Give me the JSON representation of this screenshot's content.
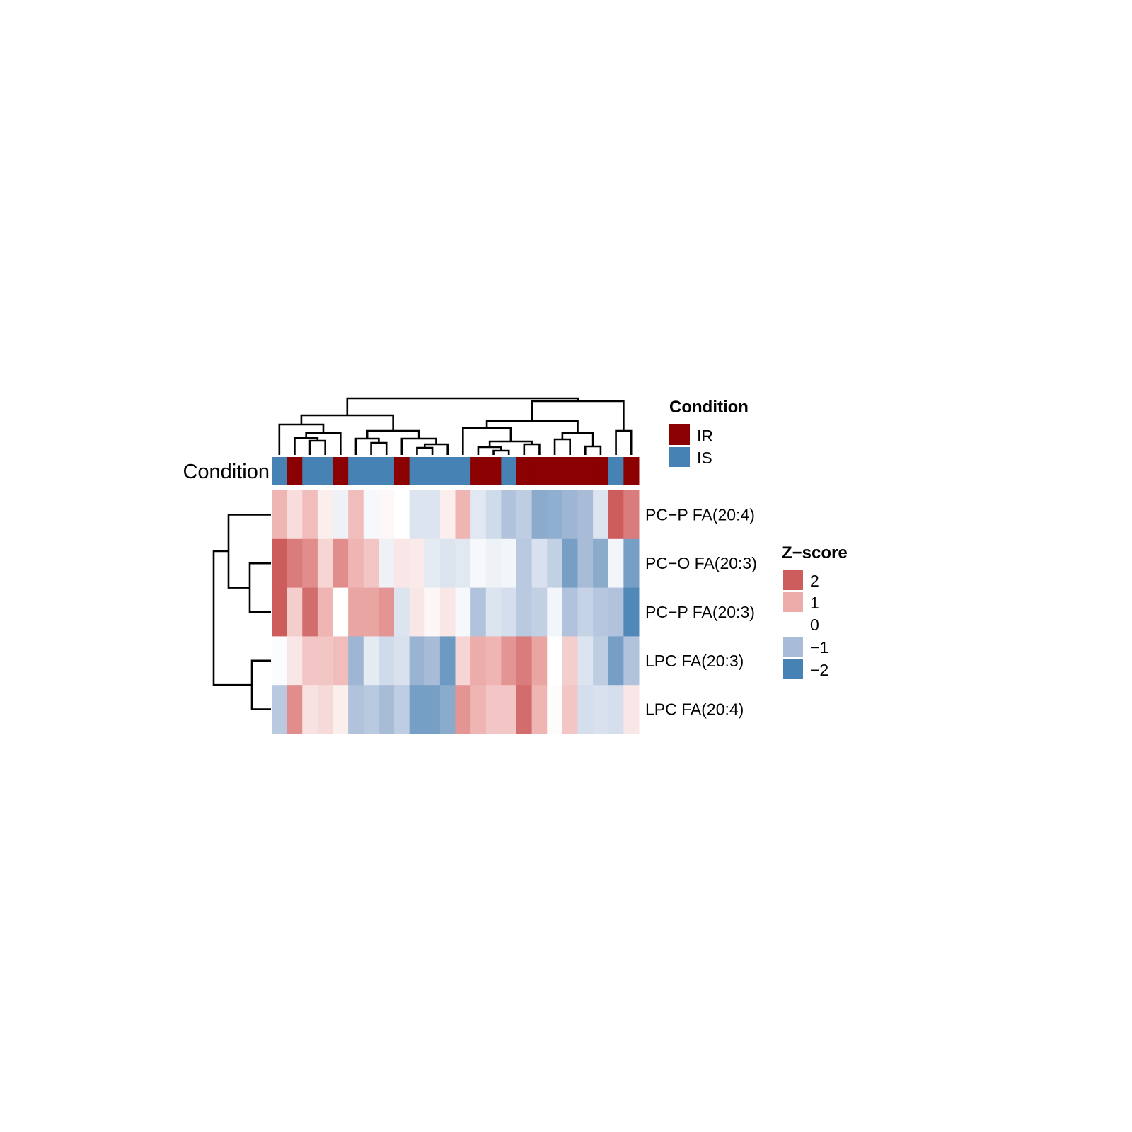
{
  "chart_data": {
    "type": "heatmap",
    "title": "",
    "row_labels": [
      "PC−P FA(20:4)",
      "PC−O FA(20:3)",
      "PC−P FA(20:3)",
      "LPC FA(20:3)",
      "LPC FA(20:4)"
    ],
    "annotation_label": "Condition",
    "condition": [
      "IS",
      "IR",
      "IS",
      "IS",
      "IR",
      "IS",
      "IS",
      "IS",
      "IR",
      "IS",
      "IS",
      "IS",
      "IS",
      "IR",
      "IR",
      "IS",
      "IR",
      "IR",
      "IR",
      "IR",
      "IR",
      "IR",
      "IS",
      "IR"
    ],
    "values": [
      [
        0.9,
        0.4,
        0.8,
        0.2,
        -0.2,
        0.8,
        -0.1,
        0.1,
        0.0,
        -0.4,
        -0.4,
        0.2,
        0.9,
        -0.35,
        -0.55,
        -0.9,
        -0.75,
        -1.3,
        -1.25,
        -1.1,
        -1.0,
        -0.4,
        2.0,
        1.6
      ],
      [
        2.0,
        1.6,
        1.4,
        0.5,
        1.4,
        0.9,
        0.7,
        -0.2,
        0.3,
        0.25,
        -0.3,
        -0.4,
        -0.35,
        -0.1,
        -0.2,
        -0.15,
        -0.8,
        -0.45,
        -0.7,
        -1.5,
        -1.0,
        -1.3,
        -0.15,
        -1.5
      ],
      [
        2.0,
        0.6,
        1.8,
        0.9,
        0.0,
        1.1,
        1.1,
        1.3,
        -0.4,
        0.3,
        0.1,
        0.3,
        -0.1,
        -0.9,
        -0.4,
        -0.5,
        -0.8,
        -0.7,
        -0.15,
        -0.9,
        -0.65,
        -0.85,
        -0.9,
        -1.9
      ],
      [
        -0.05,
        0.3,
        0.7,
        0.7,
        0.8,
        -1.1,
        -0.3,
        -0.55,
        -0.45,
        -1.15,
        -1.0,
        -1.6,
        0.5,
        1.0,
        0.9,
        1.3,
        1.6,
        1.1,
        0.0,
        0.6,
        -0.4,
        -0.75,
        -1.5,
        -0.9
      ],
      [
        -0.8,
        1.4,
        0.35,
        0.45,
        0.2,
        -0.9,
        -0.8,
        -1.0,
        -0.75,
        -1.5,
        -1.5,
        -1.3,
        1.3,
        0.9,
        0.7,
        0.7,
        1.8,
        0.9,
        0.05,
        0.7,
        -0.5,
        -0.45,
        -0.5,
        0.3
      ]
    ],
    "legend_condition": {
      "title": "Condition",
      "items": [
        {
          "label": "IR",
          "color": "#8B0000"
        },
        {
          "label": "IS",
          "color": "#4682B4"
        }
      ]
    },
    "legend_zscore": {
      "title": "Z−score",
      "items": [
        {
          "label": "2",
          "value": 2,
          "color": "#CD5C5C"
        },
        {
          "label": "1",
          "value": 1,
          "color": "#ECADAA"
        },
        {
          "label": "0",
          "value": 0,
          "color": "#FFFFFF"
        },
        {
          "label": "−1",
          "value": -1,
          "color": "#A8BCD8"
        },
        {
          "label": "−2",
          "value": -2,
          "color": "#4682B4"
        }
      ]
    },
    "zlim": [
      -2,
      2
    ]
  }
}
